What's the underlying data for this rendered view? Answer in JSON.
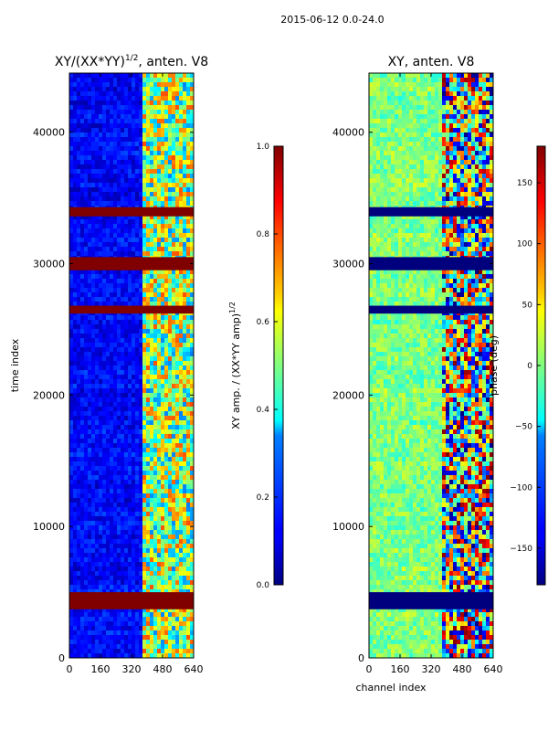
{
  "figure": {
    "suptitle": "2015-06-12 0.0-24.0"
  },
  "chart_data": [
    {
      "type": "heatmap",
      "title_main": "XY/(XX*YY)",
      "title_sup": "1/2",
      "title_tail": ", anten. V8",
      "xlabel": "",
      "ylabel": "time index",
      "xlim": [
        0,
        640
      ],
      "ylim": [
        0,
        44500
      ],
      "xticks": [
        0,
        160,
        320,
        480,
        640
      ],
      "yticks": [
        0,
        10000,
        20000,
        30000,
        40000
      ],
      "colorbar": {
        "label_main": "XY amp. / (XX*YY amp)",
        "label_sup": "1/2",
        "range": [
          0.0,
          1.0
        ],
        "ticks": [
          "0.0",
          "0.2",
          "0.4",
          "0.6",
          "0.8",
          "1.0"
        ],
        "colormap": "jet"
      },
      "flagged_time_bands": [
        [
          3700,
          5000
        ],
        [
          29500,
          30500
        ],
        [
          26200,
          26800
        ],
        [
          33600,
          34300
        ]
      ],
      "signal_channel_range": [
        380,
        640
      ],
      "grid": false
    },
    {
      "type": "heatmap",
      "title": "XY, anten. V8",
      "xlabel": "channel index",
      "ylabel": "",
      "xlim": [
        0,
        640
      ],
      "ylim": [
        0,
        44500
      ],
      "xticks": [
        0,
        160,
        320,
        480,
        640
      ],
      "yticks": [
        0,
        10000,
        20000,
        30000,
        40000
      ],
      "colorbar": {
        "label": "phase (deg)",
        "range": [
          -180,
          180
        ],
        "ticks": [
          "150",
          "100",
          "50",
          "0",
          "−50",
          "−100",
          "−150"
        ],
        "colormap": "jet"
      },
      "flagged_time_bands": [
        [
          3700,
          5000
        ],
        [
          29500,
          30500
        ],
        [
          26200,
          26800
        ],
        [
          33600,
          34300
        ]
      ],
      "signal_channel_range": [
        380,
        640
      ],
      "grid": false
    }
  ]
}
